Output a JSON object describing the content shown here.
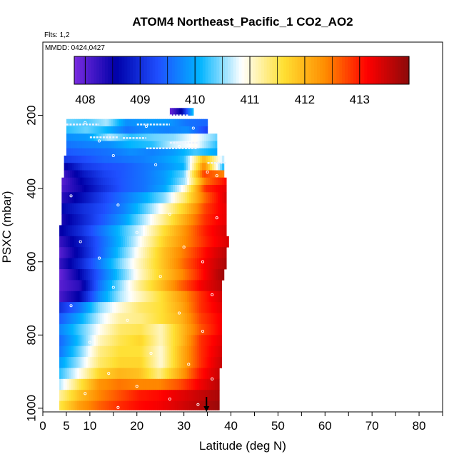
{
  "header": {
    "title": "ATOM4 Northeast_Pacific_1 CO2_AO2",
    "flights": "Flts: 1,2",
    "dates": "MMDD: 0424,0427"
  },
  "chart_data": {
    "type": "heatmap",
    "title": "ATOM4 Northeast_Pacific_1 CO2_AO2",
    "xlabel": "Latitude (deg N)",
    "ylabel": "PSXC (mbar)",
    "xlim": [
      0,
      85
    ],
    "ylim": [
      1010,
      0
    ],
    "x_ticks": [
      0,
      5,
      10,
      20,
      30,
      40,
      50,
      60,
      70,
      80
    ],
    "x_tick_labels": [
      "0",
      "5",
      "10",
      "20",
      "30",
      "40",
      "50",
      "60",
      "70",
      "80"
    ],
    "x_minor_ticks": [
      15,
      25,
      35,
      45,
      55,
      65,
      75,
      85
    ],
    "y_ticks": [
      200,
      400,
      600,
      800,
      1000
    ],
    "y_tick_labels": [
      "200",
      "400",
      "600",
      "800",
      "1000"
    ],
    "colorbar": {
      "min": 407.8,
      "max": 413.9,
      "ticks": [
        408,
        409,
        410,
        411,
        412,
        413
      ],
      "tick_labels": [
        "408",
        "409",
        "410",
        "411",
        "412",
        "413"
      ],
      "stops": [
        "#7a2be0",
        "#0000a8",
        "#1f4fff",
        "#00b4ff",
        "#ffffff",
        "#ffe033",
        "#ff8c00",
        "#ff0000",
        "#8b0a0a"
      ]
    },
    "arrow_latitude": 34.8,
    "bands": [
      {
        "p": [
          180,
          200
        ],
        "lat": [
          27,
          32
        ],
        "v": [
          407.9,
          408.6,
          410.2
        ]
      },
      {
        "p": [
          210,
          230
        ],
        "lat": [
          5,
          35
        ],
        "v": [
          410.4,
          410.3,
          410.6,
          409.8,
          409.9,
          409.9,
          409.6,
          409.5
        ]
      },
      {
        "p": [
          230,
          250
        ],
        "lat": [
          5,
          35
        ],
        "v": [
          410.2,
          410.4,
          410.1,
          409.6,
          409.8,
          409.7,
          409.8,
          409.2
        ]
      },
      {
        "p": [
          250,
          270
        ],
        "lat": [
          5,
          37
        ],
        "v": [
          409.8,
          409.9,
          410.6,
          410.2,
          410.4,
          410.5,
          410.9,
          410.4
        ]
      },
      {
        "p": [
          270,
          290
        ],
        "lat": [
          5,
          37
        ],
        "v": [
          409.6,
          409.7,
          409.8,
          410.1,
          410.2,
          410.7,
          410.9,
          410.2
        ]
      },
      {
        "p": [
          290,
          310
        ],
        "lat": [
          5,
          37
        ],
        "v": [
          409.4,
          409.5,
          409.6,
          409.8,
          409.7,
          409.9,
          410.3,
          410.0
        ]
      },
      {
        "p": [
          310,
          330
        ],
        "lat": [
          4.5,
          38.5
        ],
        "v": [
          409.1,
          409.3,
          409.5,
          409.6,
          409.7,
          409.9,
          410.2,
          412.0,
          410.6
        ]
      },
      {
        "p": [
          330,
          350
        ],
        "lat": [
          4.5,
          38.5
        ],
        "v": [
          408.5,
          409.1,
          409.3,
          409.4,
          409.6,
          409.8,
          410.1,
          412.4,
          410.1
        ]
      },
      {
        "p": [
          350,
          370
        ],
        "lat": [
          4.5,
          38.5
        ],
        "v": [
          408.2,
          408.8,
          409.2,
          409.4,
          409.6,
          409.9,
          410.4,
          412.8,
          412.4
        ]
      },
      {
        "p": [
          370,
          390
        ],
        "lat": [
          4,
          39
        ],
        "v": [
          408.0,
          408.6,
          409.1,
          409.4,
          409.6,
          409.9,
          410.6,
          412.5,
          413.1
        ]
      },
      {
        "p": [
          390,
          410
        ],
        "lat": [
          4,
          39
        ],
        "v": [
          408.1,
          408.5,
          409.0,
          409.4,
          409.6,
          410.0,
          411.0,
          412.9,
          413.3
        ]
      },
      {
        "p": [
          410,
          440
        ],
        "lat": [
          4,
          39
        ],
        "v": [
          408.3,
          408.7,
          409.2,
          409.6,
          410.0,
          410.5,
          411.4,
          412.6,
          413.4
        ]
      },
      {
        "p": [
          440,
          470
        ],
        "lat": [
          4,
          39
        ],
        "v": [
          408.6,
          409.0,
          409.3,
          409.7,
          410.3,
          411.0,
          411.8,
          412.8,
          413.3
        ]
      },
      {
        "p": [
          470,
          500
        ],
        "lat": [
          4,
          39
        ],
        "v": [
          408.4,
          408.9,
          409.4,
          409.9,
          410.6,
          411.3,
          412.1,
          412.9,
          413.3
        ]
      },
      {
        "p": [
          500,
          530
        ],
        "lat": [
          3.5,
          39
        ],
        "v": [
          408.5,
          409.0,
          409.6,
          410.2,
          410.8,
          411.6,
          412.3,
          413.0,
          413.4
        ]
      },
      {
        "p": [
          530,
          560
        ],
        "lat": [
          3.5,
          39.5
        ],
        "v": [
          408.2,
          408.8,
          409.5,
          410.2,
          411.0,
          411.8,
          412.4,
          413.0,
          413.4
        ]
      },
      {
        "p": [
          560,
          590
        ],
        "lat": [
          3.5,
          39
        ],
        "v": [
          408.0,
          408.7,
          409.5,
          410.3,
          411.1,
          411.9,
          412.5,
          413.1,
          413.6
        ]
      },
      {
        "p": [
          590,
          620
        ],
        "lat": [
          3.5,
          39
        ],
        "v": [
          408.2,
          408.9,
          409.7,
          410.5,
          411.2,
          411.9,
          412.6,
          413.2,
          413.7
        ]
      },
      {
        "p": [
          620,
          650
        ],
        "lat": [
          3.5,
          38.5
        ],
        "v": [
          407.9,
          408.6,
          409.5,
          410.3,
          411.1,
          411.8,
          412.4,
          413.1,
          413.8
        ]
      },
      {
        "p": [
          650,
          680
        ],
        "lat": [
          3.5,
          38
        ],
        "v": [
          408.0,
          408.3,
          409.6,
          410.5,
          411.3,
          411.9,
          412.6,
          413.2,
          413.6
        ]
      },
      {
        "p": [
          680,
          710
        ],
        "lat": [
          3.5,
          38
        ],
        "v": [
          408.1,
          408.6,
          409.8,
          410.6,
          411.1,
          411.6,
          412.2,
          412.9,
          413.4
        ]
      },
      {
        "p": [
          710,
          740
        ],
        "lat": [
          3.5,
          38
        ],
        "v": [
          409.0,
          409.6,
          410.5,
          411.0,
          411.4,
          411.6,
          412.1,
          412.9,
          413.3
        ]
      },
      {
        "p": [
          740,
          770
        ],
        "lat": [
          3.5,
          38
        ],
        "v": [
          409.4,
          410.0,
          410.7,
          411.2,
          411.3,
          411.6,
          412.0,
          412.8,
          413.2
        ]
      },
      {
        "p": [
          770,
          800
        ],
        "lat": [
          3.5,
          38
        ],
        "v": [
          409.7,
          410.3,
          410.9,
          411.4,
          411.5,
          411.1,
          411.9,
          412.7,
          413.2
        ]
      },
      {
        "p": [
          800,
          830
        ],
        "lat": [
          3.5,
          38
        ],
        "v": [
          409.5,
          410.2,
          411.1,
          411.5,
          411.7,
          411.1,
          411.9,
          412.9,
          413.3
        ]
      },
      {
        "p": [
          830,
          860
        ],
        "lat": [
          3.5,
          38
        ],
        "v": [
          409.6,
          410.4,
          411.3,
          411.6,
          411.6,
          411.0,
          412.0,
          412.9,
          413.4
        ]
      },
      {
        "p": [
          860,
          890
        ],
        "lat": [
          3.5,
          38
        ],
        "v": [
          409.9,
          410.6,
          411.4,
          411.7,
          411.7,
          411.0,
          412.0,
          412.9,
          413.5
        ]
      },
      {
        "p": [
          890,
          920
        ],
        "lat": [
          3.5,
          37.5
        ],
        "v": [
          410.2,
          410.9,
          411.7,
          412.0,
          411.9,
          411.3,
          412.1,
          413.0,
          413.5
        ]
      },
      {
        "p": [
          920,
          950
        ],
        "lat": [
          3.5,
          37.5
        ],
        "v": [
          410.6,
          411.5,
          412.3,
          412.5,
          412.4,
          412.4,
          412.7,
          413.2,
          413.6
        ]
      },
      {
        "p": [
          950,
          980
        ],
        "lat": [
          3.5,
          37.5
        ],
        "v": [
          411.2,
          411.9,
          412.4,
          412.7,
          413.0,
          413.1,
          413.3,
          413.5,
          413.7
        ]
      },
      {
        "p": [
          980,
          1005
        ],
        "lat": [
          3.5,
          37.5
        ],
        "v": [
          411.5,
          412.2,
          412.6,
          412.9,
          413.1,
          413.2,
          413.4,
          413.6,
          413.8
        ]
      }
    ],
    "track_segments": [
      {
        "p": 200,
        "lat": [
          27,
          31
        ]
      },
      {
        "p": 225,
        "lat": [
          5,
          12
        ]
      },
      {
        "p": 225,
        "lat": [
          20,
          27
        ]
      },
      {
        "p": 260,
        "lat": [
          10,
          16
        ]
      },
      {
        "p": 262,
        "lat": [
          17,
          22
        ]
      },
      {
        "p": 275,
        "lat": [
          27,
          33
        ]
      },
      {
        "p": 290,
        "lat": [
          22,
          33
        ]
      },
      {
        "p": 330,
        "lat": [
          35,
          39
        ]
      }
    ],
    "samples": [
      [
        9,
        220
      ],
      [
        22,
        230
      ],
      [
        32,
        235
      ],
      [
        12,
        270
      ],
      [
        29,
        285
      ],
      [
        15,
        310
      ],
      [
        24,
        335
      ],
      [
        35,
        355
      ],
      [
        37,
        365
      ],
      [
        6,
        420
      ],
      [
        16,
        445
      ],
      [
        27,
        470
      ],
      [
        37,
        480
      ],
      [
        20,
        520
      ],
      [
        8,
        545
      ],
      [
        30,
        560
      ],
      [
        12,
        590
      ],
      [
        34,
        600
      ],
      [
        25,
        640
      ],
      [
        15,
        670
      ],
      [
        36,
        690
      ],
      [
        6,
        720
      ],
      [
        29,
        740
      ],
      [
        18,
        760
      ],
      [
        34,
        790
      ],
      [
        10,
        820
      ],
      [
        23,
        850
      ],
      [
        31,
        880
      ],
      [
        14,
        905
      ],
      [
        36,
        920
      ],
      [
        20,
        940
      ],
      [
        9,
        960
      ],
      [
        27,
        975
      ],
      [
        33,
        990
      ],
      [
        16,
        998
      ]
    ]
  }
}
